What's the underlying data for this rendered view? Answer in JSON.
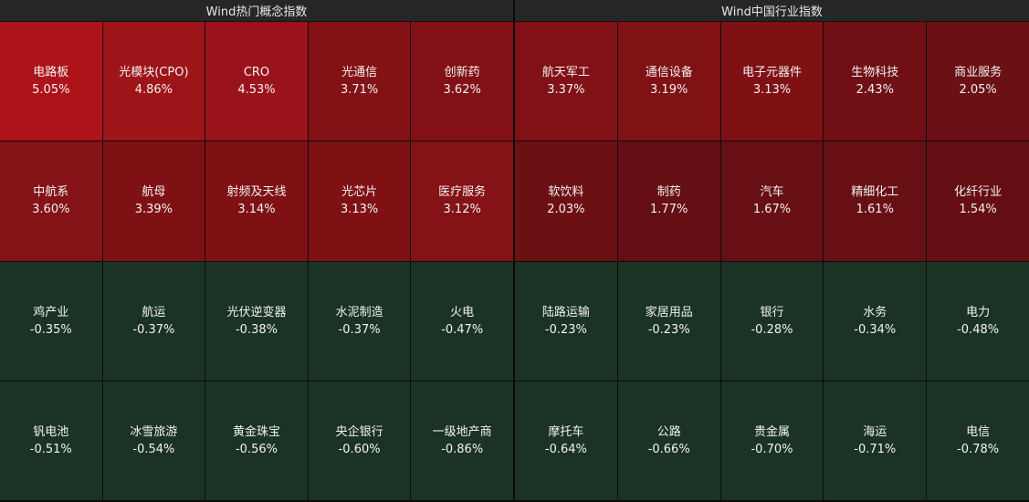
{
  "left_panel": {
    "title": "Wind热门概念指数",
    "tiles": [
      {
        "name": "电路板",
        "pct": "5.05%",
        "color": "#ad1419"
      },
      {
        "name": "光模块(CPO)",
        "pct": "4.86%",
        "color": "#9d1419"
      },
      {
        "name": "CRO",
        "pct": "4.53%",
        "color": "#9a131a"
      },
      {
        "name": "光通信",
        "pct": "3.71%",
        "color": "#821216"
      },
      {
        "name": "创新药",
        "pct": "3.62%",
        "color": "#811116"
      },
      {
        "name": "中航系",
        "pct": "3.60%",
        "color": "#841216"
      },
      {
        "name": "航母",
        "pct": "3.39%",
        "color": "#7f1115"
      },
      {
        "name": "射频及天线",
        "pct": "3.14%",
        "color": "#7f1115"
      },
      {
        "name": "光芯片",
        "pct": "3.13%",
        "color": "#7f1115"
      },
      {
        "name": "医疗服务",
        "pct": "3.12%",
        "color": "#841216"
      },
      {
        "name": "鸡产业",
        "pct": "-0.35%",
        "color": "#1b3325"
      },
      {
        "name": "航运",
        "pct": "-0.37%",
        "color": "#1b3325"
      },
      {
        "name": "光伏逆变器",
        "pct": "-0.38%",
        "color": "#1b3325"
      },
      {
        "name": "水泥制造",
        "pct": "-0.37%",
        "color": "#1b3325"
      },
      {
        "name": "火电",
        "pct": "-0.47%",
        "color": "#1b3325"
      },
      {
        "name": "钒电池",
        "pct": "-0.51%",
        "color": "#1b3325"
      },
      {
        "name": "冰雪旅游",
        "pct": "-0.54%",
        "color": "#1b3325"
      },
      {
        "name": "黄金珠宝",
        "pct": "-0.56%",
        "color": "#1b3325"
      },
      {
        "name": "央企银行",
        "pct": "-0.60%",
        "color": "#1b3325"
      },
      {
        "name": "一级地产商",
        "pct": "-0.86%",
        "color": "#1b3325"
      }
    ]
  },
  "right_panel": {
    "title": "Wind中国行业指数",
    "tiles": [
      {
        "name": "航天军工",
        "pct": "3.37%",
        "color": "#811116"
      },
      {
        "name": "通信设备",
        "pct": "3.19%",
        "color": "#801115"
      },
      {
        "name": "电子元器件",
        "pct": "3.13%",
        "color": "#7f1115"
      },
      {
        "name": "生物科技",
        "pct": "2.43%",
        "color": "#701015"
      },
      {
        "name": "商业服务",
        "pct": "2.05%",
        "color": "#6b1014"
      },
      {
        "name": "软饮料",
        "pct": "2.03%",
        "color": "#6c1014"
      },
      {
        "name": "制药",
        "pct": "1.77%",
        "color": "#650e13"
      },
      {
        "name": "汽车",
        "pct": "1.67%",
        "color": "#680f13"
      },
      {
        "name": "精细化工",
        "pct": "1.61%",
        "color": "#680f13"
      },
      {
        "name": "化纤行业",
        "pct": "1.54%",
        "color": "#650e13"
      },
      {
        "name": "陆路运输",
        "pct": "-0.23%",
        "color": "#1b3325"
      },
      {
        "name": "家居用品",
        "pct": "-0.23%",
        "color": "#1b3325"
      },
      {
        "name": "银行",
        "pct": "-0.28%",
        "color": "#1b3325"
      },
      {
        "name": "水务",
        "pct": "-0.34%",
        "color": "#1b3325"
      },
      {
        "name": "电力",
        "pct": "-0.48%",
        "color": "#1b3325"
      },
      {
        "name": "摩托车",
        "pct": "-0.64%",
        "color": "#1b3325"
      },
      {
        "name": "公路",
        "pct": "-0.66%",
        "color": "#1b3325"
      },
      {
        "name": "贵金属",
        "pct": "-0.70%",
        "color": "#1b3325"
      },
      {
        "name": "海运",
        "pct": "-0.71%",
        "color": "#1b3325"
      },
      {
        "name": "电信",
        "pct": "-0.78%",
        "color": "#1b3325"
      }
    ]
  }
}
